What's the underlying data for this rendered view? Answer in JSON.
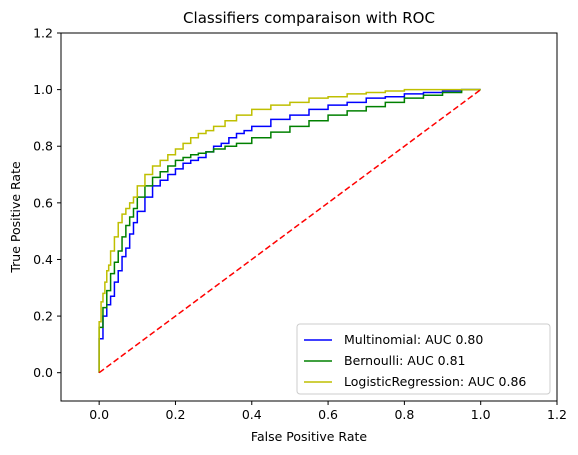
{
  "chart_data": {
    "type": "line",
    "title": "Classifiers comparaison with ROC",
    "xlabel": "False Positive Rate",
    "ylabel": "True Positive Rate",
    "xlim": [
      -0.1,
      1.2
    ],
    "ylim": [
      -0.1,
      1.2
    ],
    "xticks": [
      "0.0",
      "0.2",
      "0.4",
      "0.6",
      "0.8",
      "1.0",
      "1.2"
    ],
    "yticks": [
      "0.0",
      "0.2",
      "0.4",
      "0.6",
      "0.8",
      "1.0",
      "1.2"
    ],
    "grid": false,
    "legend_position": "lower-right",
    "series": [
      {
        "name": "Multinomial: AUC 0.80",
        "color": "#0000ff",
        "style": "step",
        "x": [
          0.0,
          0.0,
          0.01,
          0.02,
          0.03,
          0.04,
          0.05,
          0.06,
          0.07,
          0.08,
          0.09,
          0.1,
          0.12,
          0.14,
          0.16,
          0.18,
          0.2,
          0.22,
          0.24,
          0.26,
          0.28,
          0.3,
          0.32,
          0.34,
          0.36,
          0.38,
          0.4,
          0.45,
          0.5,
          0.55,
          0.6,
          0.65,
          0.7,
          0.75,
          0.8,
          0.85,
          0.9,
          0.95,
          1.0
        ],
        "y": [
          0.0,
          0.03,
          0.12,
          0.2,
          0.24,
          0.27,
          0.32,
          0.36,
          0.41,
          0.44,
          0.49,
          0.53,
          0.57,
          0.62,
          0.66,
          0.68,
          0.7,
          0.72,
          0.74,
          0.75,
          0.76,
          0.78,
          0.8,
          0.81,
          0.83,
          0.845,
          0.855,
          0.87,
          0.895,
          0.91,
          0.93,
          0.945,
          0.955,
          0.97,
          0.975,
          0.985,
          0.99,
          0.995,
          1.0
        ]
      },
      {
        "name": "Bernoulli: AUC 0.81",
        "color": "#008000",
        "style": "step",
        "x": [
          0.0,
          0.0,
          0.01,
          0.02,
          0.03,
          0.04,
          0.05,
          0.06,
          0.07,
          0.08,
          0.09,
          0.1,
          0.12,
          0.14,
          0.16,
          0.18,
          0.2,
          0.22,
          0.24,
          0.26,
          0.28,
          0.3,
          0.33,
          0.36,
          0.4,
          0.45,
          0.5,
          0.55,
          0.6,
          0.65,
          0.7,
          0.75,
          0.8,
          0.85,
          0.9,
          0.95,
          1.0
        ],
        "y": [
          0.0,
          0.04,
          0.16,
          0.23,
          0.29,
          0.35,
          0.39,
          0.43,
          0.48,
          0.52,
          0.55,
          0.58,
          0.62,
          0.66,
          0.69,
          0.71,
          0.73,
          0.75,
          0.76,
          0.77,
          0.775,
          0.78,
          0.79,
          0.8,
          0.81,
          0.83,
          0.85,
          0.87,
          0.89,
          0.91,
          0.925,
          0.94,
          0.955,
          0.97,
          0.98,
          0.99,
          1.0
        ]
      },
      {
        "name": "LogisticRegression: AUC 0.86",
        "color": "#bfbf00",
        "style": "step",
        "x": [
          0.0,
          0.0,
          0.005,
          0.01,
          0.015,
          0.02,
          0.025,
          0.03,
          0.04,
          0.05,
          0.06,
          0.07,
          0.08,
          0.09,
          0.1,
          0.12,
          0.14,
          0.16,
          0.18,
          0.2,
          0.22,
          0.24,
          0.26,
          0.28,
          0.3,
          0.33,
          0.36,
          0.4,
          0.45,
          0.5,
          0.55,
          0.6,
          0.65,
          0.7,
          0.75,
          0.8,
          0.85,
          0.9,
          1.0
        ],
        "y": [
          0.0,
          0.09,
          0.18,
          0.25,
          0.28,
          0.32,
          0.36,
          0.38,
          0.43,
          0.48,
          0.53,
          0.56,
          0.58,
          0.6,
          0.62,
          0.66,
          0.7,
          0.73,
          0.75,
          0.77,
          0.79,
          0.81,
          0.83,
          0.845,
          0.855,
          0.87,
          0.89,
          0.91,
          0.93,
          0.945,
          0.955,
          0.97,
          0.975,
          0.985,
          0.99,
          0.995,
          1.0,
          1.0,
          1.0
        ]
      },
      {
        "name": "",
        "color": "#ff0000",
        "style": "dashed",
        "x": [
          0.0,
          1.0
        ],
        "y": [
          0.0,
          1.0
        ]
      }
    ]
  }
}
